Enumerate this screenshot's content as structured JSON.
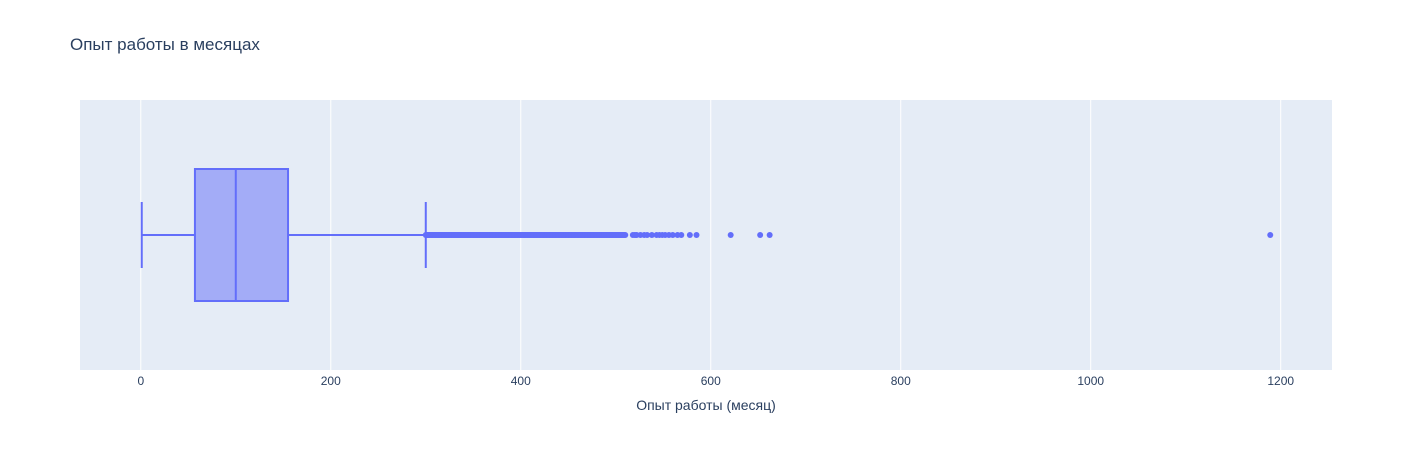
{
  "chart_data": {
    "type": "box",
    "title": "Опыт работы в месяцах",
    "xlabel": "Опыт работы (месяц)",
    "ylabel": "",
    "orientation": "horizontal",
    "xlim": [
      -64,
      1254
    ],
    "xticks": [
      0,
      200,
      400,
      600,
      800,
      1000,
      1200
    ],
    "xtick_labels": [
      "0",
      "200",
      "400",
      "600",
      "800",
      "1000",
      "1200"
    ],
    "grid": true,
    "legend": "none",
    "colors": {
      "plot_bg": "#e5ecf6",
      "grid": "#ffffff",
      "box_fill": "#a3acf7",
      "box_line": "#636efa",
      "text": "#2a3f5f"
    },
    "box": {
      "min": 1,
      "q1": 57,
      "median": 100,
      "q3": 155,
      "upper_fence": 300
    },
    "outlier_range_dense": [
      300,
      510
    ],
    "outliers": [
      518,
      520,
      522,
      526,
      530,
      533,
      538,
      543,
      546,
      549,
      552,
      556,
      560,
      565,
      569,
      578,
      585,
      621,
      652,
      662,
      1189
    ]
  }
}
